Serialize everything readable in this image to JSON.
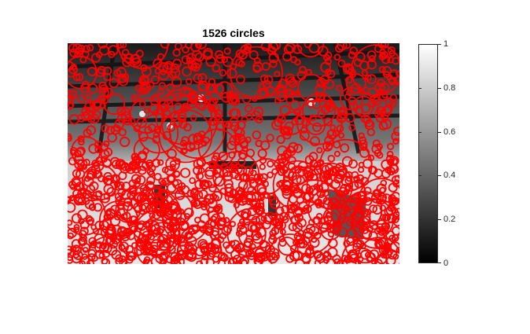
{
  "figure": {
    "title": "1526 circles"
  },
  "overlay": {
    "circle_color": "#ff0000",
    "circle_count": 1526
  },
  "colorbar": {
    "colormap": "gray",
    "range": [
      0,
      1
    ],
    "ticks": [
      {
        "value": 0,
        "label": "0"
      },
      {
        "value": 0.2,
        "label": "0.2"
      },
      {
        "value": 0.4,
        "label": "0.4"
      },
      {
        "value": 0.6,
        "label": "0.6"
      },
      {
        "value": 0.8,
        "label": "0.8"
      },
      {
        "value": 1,
        "label": "1"
      }
    ]
  }
}
